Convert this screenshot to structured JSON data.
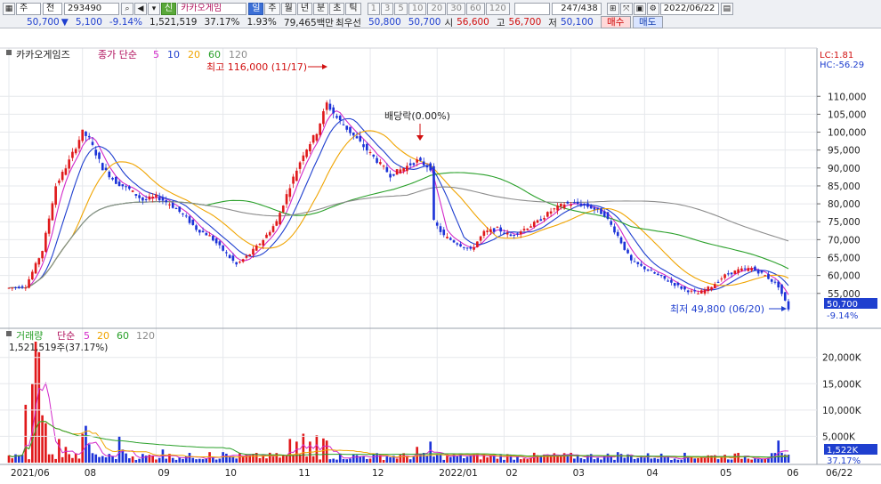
{
  "toolbar": {
    "market": "주",
    "scope": "전",
    "code": "293490",
    "badge": "신",
    "name": "카카오게임",
    "periods": [
      "일",
      "주",
      "월",
      "년",
      "분",
      "초",
      "틱"
    ],
    "intervals": [
      "1",
      "3",
      "5",
      "10",
      "20",
      "30",
      "60",
      "120"
    ],
    "count": "247",
    "count_total": "/438",
    "date": "2022/06/22",
    "icons": [
      "grid-icon",
      "arrows-icon",
      "save-icon",
      "gear-icon"
    ]
  },
  "quote": {
    "price": "50,700",
    "change": "5,100",
    "pct": "-9.14%",
    "volume": "1,521,519",
    "vol_ratio": "37.17%",
    "turnover": "1.93%",
    "amount": "79,465백만",
    "pref_label": "최우선",
    "bid1": "50,800",
    "ask1": "50,700",
    "open_label": "시",
    "open": "56,600",
    "high_label": "고",
    "high": "56,700",
    "low_label": "저",
    "low": "50,100",
    "buy": "매수",
    "sell": "매도"
  },
  "colors": {
    "up": "#e0191b",
    "down": "#1c33d8",
    "ma5": "#d228c9",
    "ma10": "#1f3fcf",
    "ma20": "#f0a400",
    "ma60": "#2aa02a",
    "ma120": "#8c8c8c"
  },
  "chart_data": [
    {
      "type": "candlestick",
      "legend_title": "카카오게임즈",
      "legend": [
        "종가 단순",
        "5",
        "10",
        "20",
        "60",
        "120"
      ],
      "ylim": [
        47000,
        119000
      ],
      "y_ticks": [
        "110,000",
        "105,000",
        "100,000",
        "95,000",
        "90,000",
        "85,000",
        "80,000",
        "75,000",
        "70,000",
        "65,000",
        "60,000",
        "55,000"
      ],
      "y_tick_values": [
        110000,
        105000,
        100000,
        95000,
        90000,
        85000,
        80000,
        75000,
        70000,
        65000,
        60000,
        55000
      ],
      "x_ticks": [
        "2021/06",
        "08",
        "09",
        "10",
        "11",
        "12",
        "2022/01",
        "02",
        "03",
        "04",
        "05",
        "06",
        "06/22"
      ],
      "indicator_lc": "LC:1.81",
      "indicator_hc": "HC:-56.29",
      "last_price": "50,700",
      "last_pct": "-9.14%",
      "annotation_high": "최고 116,000 (11/17)",
      "annotation_low": "최저 49,800 (06/20)",
      "annotation_dividend": "배당락(0.00%)",
      "anchors": [
        [
          0,
          56500
        ],
        [
          5,
          57000
        ],
        [
          10,
          67000
        ],
        [
          14,
          85000
        ],
        [
          18,
          92000
        ],
        [
          22,
          100000
        ],
        [
          24,
          98000
        ],
        [
          28,
          90000
        ],
        [
          32,
          86000
        ],
        [
          36,
          84000
        ],
        [
          40,
          81000
        ],
        [
          44,
          82000
        ],
        [
          48,
          80000
        ],
        [
          52,
          77000
        ],
        [
          56,
          73000
        ],
        [
          60,
          71000
        ],
        [
          64,
          67000
        ],
        [
          68,
          63000
        ],
        [
          72,
          66000
        ],
        [
          76,
          70000
        ],
        [
          80,
          75000
        ],
        [
          84,
          85000
        ],
        [
          88,
          94000
        ],
        [
          92,
          100000
        ],
        [
          95,
          108000
        ],
        [
          98,
          104000
        ],
        [
          102,
          100000
        ],
        [
          106,
          96000
        ],
        [
          110,
          92000
        ],
        [
          114,
          88000
        ],
        [
          118,
          90000
        ],
        [
          122,
          92000
        ],
        [
          126,
          90000
        ],
        [
          127,
          75000
        ],
        [
          130,
          71000
        ],
        [
          134,
          69000
        ],
        [
          138,
          67000
        ],
        [
          142,
          72000
        ],
        [
          146,
          73000
        ],
        [
          150,
          71000
        ],
        [
          154,
          73000
        ],
        [
          158,
          75000
        ],
        [
          162,
          78000
        ],
        [
          166,
          80000
        ],
        [
          170,
          80000
        ],
        [
          174,
          79000
        ],
        [
          178,
          77000
        ],
        [
          182,
          71000
        ],
        [
          186,
          64000
        ],
        [
          190,
          62000
        ],
        [
          194,
          60000
        ],
        [
          198,
          58000
        ],
        [
          202,
          56000
        ],
        [
          206,
          55000
        ],
        [
          210,
          57000
        ],
        [
          214,
          60000
        ],
        [
          218,
          61500
        ],
        [
          222,
          62000
        ],
        [
          226,
          60000
        ],
        [
          230,
          57000
        ],
        [
          233,
          50700
        ]
      ]
    },
    {
      "type": "bar",
      "legend_title": "거래량",
      "legend": [
        "단순",
        "5",
        "20",
        "60",
        "120"
      ],
      "current_volume": "1,521,519주(37.17%)",
      "ylim": [
        0,
        23000
      ],
      "y_ticks": [
        "20,000K",
        "15,000K",
        "10,000K",
        "5,000K"
      ],
      "y_tick_values": [
        20000,
        15000,
        10000,
        5000
      ],
      "last_value": "1,522K",
      "last_pct": "37.17%",
      "spikes": [
        [
          5,
          11000
        ],
        [
          7,
          15000
        ],
        [
          8,
          23000
        ],
        [
          9,
          21000
        ],
        [
          10,
          9000
        ],
        [
          11,
          7500
        ],
        [
          15,
          4500
        ],
        [
          17,
          3000
        ],
        [
          22,
          5500
        ],
        [
          23,
          7000
        ],
        [
          24,
          3500
        ],
        [
          33,
          5000
        ],
        [
          34,
          2500
        ],
        [
          46,
          2500
        ],
        [
          60,
          2000
        ],
        [
          64,
          2000
        ],
        [
          84,
          4500
        ],
        [
          86,
          4000
        ],
        [
          88,
          5500
        ],
        [
          90,
          4000
        ],
        [
          92,
          5200
        ],
        [
          94,
          4600
        ],
        [
          95,
          4200
        ],
        [
          122,
          3000
        ],
        [
          126,
          4000
        ],
        [
          182,
          2000
        ],
        [
          230,
          4200
        ],
        [
          233,
          1522
        ]
      ]
    }
  ]
}
